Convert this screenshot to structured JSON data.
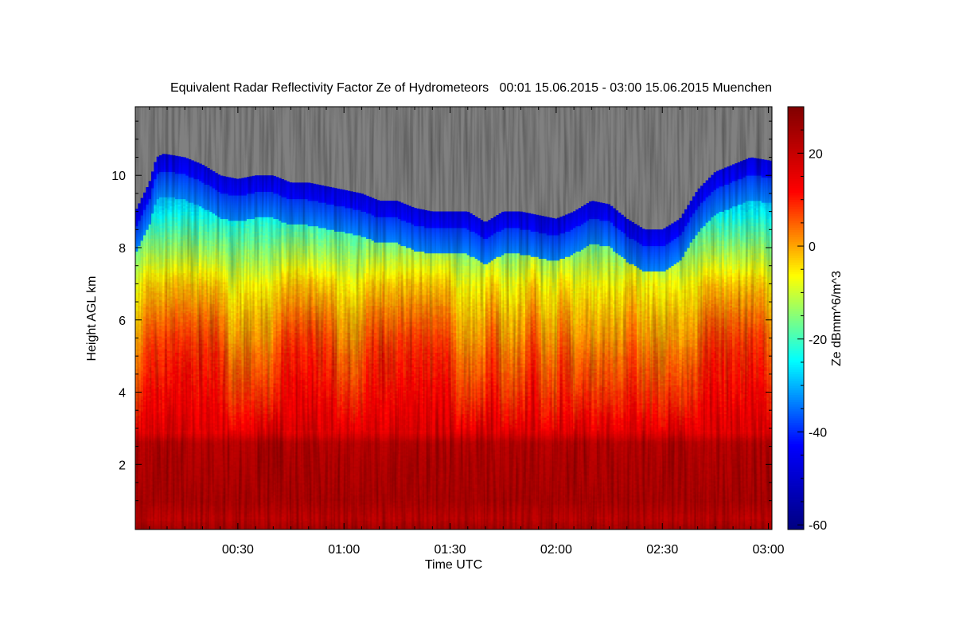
{
  "chart_data": {
    "type": "heatmap",
    "title": "Equivalent Radar Reflectivity Factor Ze of Hydrometeors   00:01 15.06.2015 - 03:00 15.06.2015 Muenchen",
    "xlabel": "Time UTC",
    "ylabel": "Height AGL km",
    "x_ticks": [
      "00:30",
      "01:00",
      "01:30",
      "02:00",
      "02:30",
      "03:00"
    ],
    "x_tick_minutes": [
      30,
      60,
      90,
      120,
      150,
      180
    ],
    "xlim_minutes": [
      1,
      181
    ],
    "y_ticks": [
      2,
      4,
      6,
      8,
      10
    ],
    "ylim": [
      0.2,
      11.9
    ],
    "colorbar": {
      "label": "Ze dBmm^6/m^3",
      "ticks": [
        20,
        0,
        -20,
        -40,
        -60
      ],
      "range": [
        -61,
        30
      ],
      "colors": [
        "#000080",
        "#0000ff",
        "#00ffff",
        "#ffff00",
        "#ff0000",
        "#800000"
      ]
    },
    "no_data_color": "#808080",
    "echo_top_km": [
      [
        1,
        9.0
      ],
      [
        3,
        9.4
      ],
      [
        5,
        9.8
      ],
      [
        7,
        10.5
      ],
      [
        9,
        10.6
      ],
      [
        15,
        10.5
      ],
      [
        20,
        10.3
      ],
      [
        25,
        10.0
      ],
      [
        30,
        9.9
      ],
      [
        35,
        10.0
      ],
      [
        40,
        10.0
      ],
      [
        45,
        9.8
      ],
      [
        50,
        9.8
      ],
      [
        55,
        9.7
      ],
      [
        60,
        9.6
      ],
      [
        65,
        9.5
      ],
      [
        70,
        9.3
      ],
      [
        75,
        9.3
      ],
      [
        80,
        9.1
      ],
      [
        85,
        9.0
      ],
      [
        90,
        9.0
      ],
      [
        95,
        9.0
      ],
      [
        100,
        8.7
      ],
      [
        105,
        9.0
      ],
      [
        110,
        9.0
      ],
      [
        115,
        8.9
      ],
      [
        120,
        8.8
      ],
      [
        125,
        9.0
      ],
      [
        130,
        9.3
      ],
      [
        135,
        9.2
      ],
      [
        140,
        8.8
      ],
      [
        145,
        8.5
      ],
      [
        150,
        8.5
      ],
      [
        155,
        8.8
      ],
      [
        160,
        9.6
      ],
      [
        165,
        10.1
      ],
      [
        170,
        10.3
      ],
      [
        175,
        10.5
      ],
      [
        181,
        10.4
      ]
    ],
    "ze_profile_dbz": {
      "heights_km": [
        0.2,
        0.5,
        1.0,
        2.0,
        2.6,
        2.9,
        3.5,
        5.0,
        6.0,
        7.0,
        8.0,
        9.0,
        10.0,
        10.6
      ],
      "values": [
        24,
        20,
        23,
        22,
        21,
        14,
        11,
        6,
        1,
        -5,
        -15,
        -25,
        -35,
        -42
      ]
    },
    "high_reflectivity_columns_minutes": [
      [
        3,
        27
      ],
      [
        40,
        58
      ],
      [
        65,
        92
      ],
      [
        100,
        104
      ],
      [
        111,
        116
      ],
      [
        120,
        124
      ],
      [
        140,
        143
      ],
      [
        160,
        181
      ]
    ]
  }
}
